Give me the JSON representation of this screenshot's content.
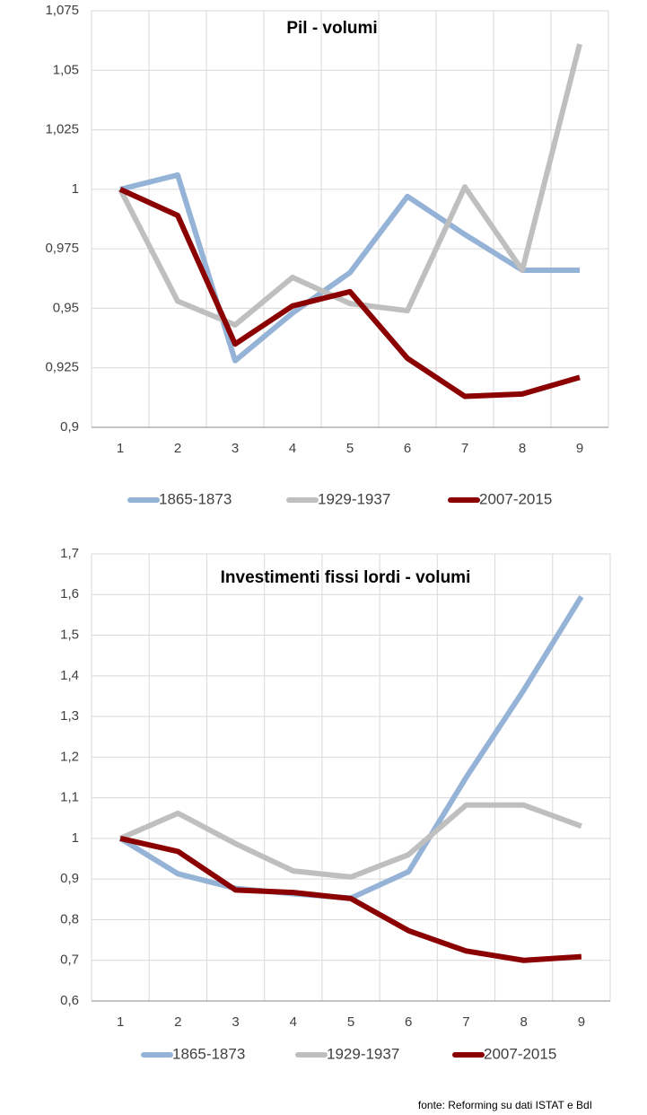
{
  "chart_data": [
    {
      "type": "line",
      "title": "Pil - volumi",
      "categories": [
        "1",
        "2",
        "3",
        "4",
        "5",
        "6",
        "7",
        "8",
        "9"
      ],
      "ylim": [
        0.9,
        1.075
      ],
      "yticks": [
        {
          "value": 0.9,
          "label": "0,9"
        },
        {
          "value": 0.925,
          "label": "0,925"
        },
        {
          "value": 0.95,
          "label": "0,95"
        },
        {
          "value": 0.975,
          "label": "0,975"
        },
        1,
        {
          "value": 1.025,
          "label": "1,025"
        },
        {
          "value": 1.05,
          "label": "1,05"
        },
        {
          "value": 1.075,
          "label": "1,075"
        }
      ],
      "grid": true,
      "legend": "bottom",
      "series": [
        {
          "name": "1865-1873",
          "color": "#95b3d7",
          "values": [
            1,
            1.006,
            0.928,
            0.948,
            0.965,
            0.997,
            0.981,
            0.966,
            0.966
          ]
        },
        {
          "name": "1929-1937",
          "color": "#bfbfbf",
          "values": [
            1,
            0.953,
            0.943,
            0.963,
            0.952,
            0.949,
            1.001,
            0.966,
            1.061
          ]
        },
        {
          "name": "2007-2015",
          "color": "#8b0000",
          "values": [
            1,
            0.989,
            0.935,
            0.951,
            0.957,
            0.929,
            0.913,
            0.914,
            0.921
          ]
        }
      ]
    },
    {
      "type": "line",
      "title": "Investimenti fissi lordi - volumi",
      "categories": [
        "1",
        "2",
        "3",
        "4",
        "5",
        "6",
        "7",
        "8",
        "9"
      ],
      "ylim": [
        0.6,
        1.7
      ],
      "yticks": [
        {
          "value": 0.6,
          "label": "0,6"
        },
        {
          "value": 0.7,
          "label": "0,7"
        },
        {
          "value": 0.8,
          "label": "0,8"
        },
        {
          "value": 0.9,
          "label": "0,9"
        },
        1,
        {
          "value": 1.1,
          "label": "1,1"
        },
        {
          "value": 1.2,
          "label": "1,2"
        },
        {
          "value": 1.3,
          "label": "1,3"
        },
        {
          "value": 1.4,
          "label": "1,4"
        },
        {
          "value": 1.5,
          "label": "1,5"
        },
        {
          "value": 1.6,
          "label": "1,6"
        },
        {
          "value": 1.7,
          "label": "1,7"
        }
      ],
      "grid": true,
      "legend": "bottom",
      "series": [
        {
          "name": "1865-1873",
          "color": "#95b3d7",
          "values": [
            1,
            0.913,
            0.877,
            0.864,
            0.853,
            0.918,
            1.15,
            1.365,
            1.595
          ]
        },
        {
          "name": "1929-1937",
          "color": "#bfbfbf",
          "values": [
            1,
            1.062,
            0.987,
            0.92,
            0.905,
            0.96,
            1.082,
            1.082,
            1.03
          ]
        },
        {
          "name": "2007-2015",
          "color": "#8b0000",
          "values": [
            1,
            0.968,
            0.873,
            0.867,
            0.852,
            0.773,
            0.723,
            0.7,
            0.709
          ]
        }
      ]
    }
  ],
  "source": "fonte: Reforming su dati ISTAT e BdI"
}
